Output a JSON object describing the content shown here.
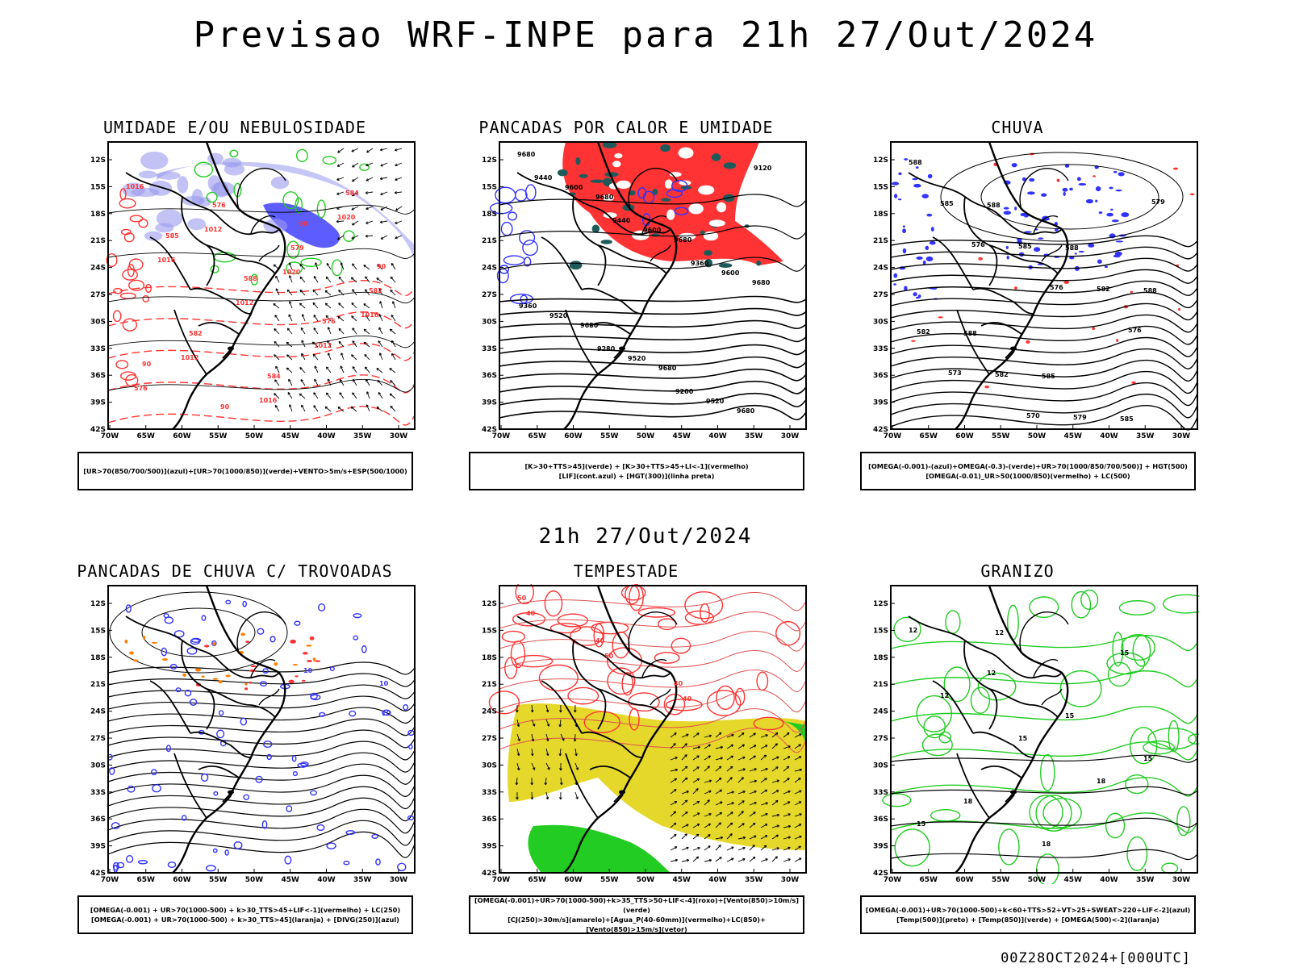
{
  "title": "Previsao WRF-INPE  para 21h 27/Out/2024",
  "mid_title": "21h 27/Out/2024",
  "footer": "00Z28OCT2024+[000UTC]",
  "axes": {
    "lat_ticks": [
      "12S",
      "15S",
      "18S",
      "21S",
      "24S",
      "27S",
      "30S",
      "33S",
      "36S",
      "39S",
      "42S"
    ],
    "lon_ticks": [
      "70W",
      "65W",
      "60W",
      "55W",
      "50W",
      "45W",
      "40W",
      "35W",
      "30W"
    ]
  },
  "colors": {
    "blue_humidity": "#9999ee",
    "blue_strong": "#3333ff",
    "green": "#22cc22",
    "red": "#ff3333",
    "dark_teal": "#1f5a5a",
    "yellow": "#e6d82a",
    "orange": "#ff7f00"
  },
  "panels": [
    {
      "title": "UMIDADE E/OU NEBULOSIDADE",
      "legend": [
        "[UR>70(850/700/500)](azul)+[UR>70(1000/850)](verde)+VENTO>5m/s+ESP(500/1000)"
      ],
      "contour_labels": [
        "1016",
        "1012",
        "1020",
        "1016",
        "1012",
        "1016",
        "1020",
        "1016",
        "1012",
        "1012",
        "576",
        "576",
        "579",
        "582",
        "582",
        "584",
        "584",
        "585",
        "588",
        "576",
        "90",
        "90",
        "90",
        "90"
      ]
    },
    {
      "title": "PANCADAS POR CALOR E UMIDADE",
      "legend": [
        "[K>30+TTS>45](verde) + [K>30+TTS>45+LI<-1](vermelho)",
        "[LIF](cont.azul) + [HGT(300)](linha preta)"
      ],
      "contour_labels": [
        "9680",
        "9680",
        "9680",
        "9680",
        "9680",
        "9680",
        "9680",
        "9600",
        "9600",
        "9600",
        "9520",
        "9520",
        "9520",
        "9440",
        "9440",
        "9360",
        "9360",
        "9280",
        "9200",
        "9120"
      ]
    },
    {
      "title": "CHUVA",
      "legend": [
        "[OMEGA(-0.001)-(azul)+OMEGA(-0.3)-(verde)+UR>70(1000/850/700/500)] + HGT(500)",
        "[OMEGA(-0.01)_UR>50(1000/850)(vermelho) + LC(500)"
      ],
      "contour_labels": [
        "588",
        "588",
        "588",
        "588",
        "588",
        "585",
        "585",
        "585",
        "585",
        "582",
        "582",
        "582",
        "579",
        "579",
        "576",
        "576",
        "576",
        "573",
        "570"
      ]
    },
    {
      "title": "PANCADAS DE CHUVA C/ TROVOADAS",
      "legend": [
        "[OMEGA(-0.001) + UR>70(1000-500) + k>30_TTS>45+LIF<-1](vermelho) + LC(250)",
        "[OMEGA(-0.001) + UR>70(1000-500) + k>30_TTS>45](laranja) + [DIVG(250)](azul)"
      ],
      "contour_labels": [
        "10",
        "10",
        "10"
      ]
    },
    {
      "title": "TEMPESTADE",
      "legend": [
        "[OMEGA(-0.001)+UR>70(1000-500)+k>35_TTS>50+LIF<-4](roxo)+[Vento(850)>10m/s](verde)",
        "[CJ(250)>30m/s](amarelo)+[Agua_P(40-60mm)](vermelho)+LC(850)+[Vento(850)>15m/s](vetor)"
      ],
      "contour_labels": [
        "50",
        "40",
        "40",
        "40",
        "50",
        "40"
      ]
    },
    {
      "title": "GRANIZO",
      "legend": [
        "[OMEGA(-0.001)+UR>70(1000-500)+k<60+TTS>52+VT>25+SWEAT>220+LIF<-2](azul)",
        "[Temp(500)](preto) + [Temp(850)](verde) + [OMEGA(500)<-2](laranja)"
      ],
      "contour_labels": [
        "12",
        "12",
        "15",
        "15",
        "18",
        "18",
        "15",
        "12",
        "15",
        "18",
        "15",
        "12"
      ]
    }
  ]
}
